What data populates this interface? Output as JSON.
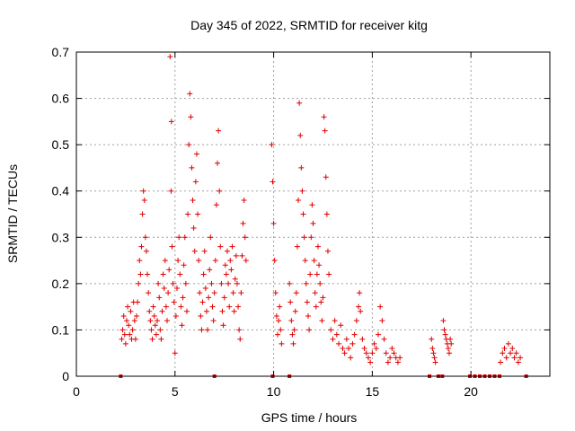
{
  "chart_data": {
    "type": "scatter",
    "title": "Day 345 of 2022, SRMTID for receiver kitg",
    "xlabel": "GPS time / hours",
    "ylabel": "SRMTID / TECUs",
    "xlim": [
      0,
      24
    ],
    "ylim": [
      0,
      0.7
    ],
    "xticks": [
      0,
      5,
      10,
      15,
      20
    ],
    "yticks": [
      0,
      0.1,
      0.2,
      0.3,
      0.4,
      0.5,
      0.6,
      0.7
    ],
    "grid": true,
    "marker": "plus",
    "color": "#e00000",
    "series": [
      {
        "name": "SRMTID",
        "points": [
          [
            2.3,
            0.08
          ],
          [
            2.35,
            0.1
          ],
          [
            2.4,
            0.13
          ],
          [
            2.45,
            0.09
          ],
          [
            2.5,
            0.07
          ],
          [
            2.55,
            0.12
          ],
          [
            2.6,
            0.15
          ],
          [
            2.65,
            0.11
          ],
          [
            2.7,
            0.09
          ],
          [
            2.75,
            0.14
          ],
          [
            2.8,
            0.08
          ],
          [
            2.85,
            0.1
          ],
          [
            2.9,
            0.16
          ],
          [
            2.95,
            0.12
          ],
          [
            3.0,
            0.08
          ],
          [
            3.05,
            0.13
          ],
          [
            3.1,
            0.16
          ],
          [
            3.15,
            0.2
          ],
          [
            3.2,
            0.25
          ],
          [
            3.25,
            0.22
          ],
          [
            3.3,
            0.28
          ],
          [
            3.35,
            0.35
          ],
          [
            3.4,
            0.4
          ],
          [
            3.45,
            0.38
          ],
          [
            3.5,
            0.3
          ],
          [
            3.55,
            0.27
          ],
          [
            3.6,
            0.22
          ],
          [
            3.65,
            0.18
          ],
          [
            3.7,
            0.14
          ],
          [
            3.75,
            0.12
          ],
          [
            3.8,
            0.1
          ],
          [
            3.85,
            0.08
          ],
          [
            3.9,
            0.15
          ],
          [
            3.95,
            0.13
          ],
          [
            4.0,
            0.11
          ],
          [
            4.05,
            0.09
          ],
          [
            4.1,
            0.12
          ],
          [
            4.15,
            0.2
          ],
          [
            4.2,
            0.17
          ],
          [
            4.25,
            0.1
          ],
          [
            4.3,
            0.08
          ],
          [
            4.35,
            0.14
          ],
          [
            4.4,
            0.22
          ],
          [
            4.45,
            0.19
          ],
          [
            4.5,
            0.25
          ],
          [
            4.55,
            0.15
          ],
          [
            4.6,
            0.12
          ],
          [
            4.65,
            0.18
          ],
          [
            4.7,
            0.23
          ],
          [
            4.75,
            0.69
          ],
          [
            4.8,
            0.4
          ],
          [
            4.82,
            0.55
          ],
          [
            4.85,
            0.28
          ],
          [
            4.9,
            0.2
          ],
          [
            4.95,
            0.16
          ],
          [
            5.0,
            0.05
          ],
          [
            5.05,
            0.13
          ],
          [
            5.1,
            0.19
          ],
          [
            5.15,
            0.25
          ],
          [
            5.2,
            0.3
          ],
          [
            5.25,
            0.22
          ],
          [
            5.3,
            0.15
          ],
          [
            5.35,
            0.11
          ],
          [
            5.4,
            0.17
          ],
          [
            5.45,
            0.24
          ],
          [
            5.5,
            0.3
          ],
          [
            5.55,
            0.2
          ],
          [
            5.6,
            0.14
          ],
          [
            5.65,
            0.35
          ],
          [
            5.7,
            0.5
          ],
          [
            5.75,
            0.61
          ],
          [
            5.8,
            0.56
          ],
          [
            5.85,
            0.45
          ],
          [
            5.9,
            0.38
          ],
          [
            5.95,
            0.32
          ],
          [
            6.0,
            0.27
          ],
          [
            6.05,
            0.42
          ],
          [
            6.1,
            0.48
          ],
          [
            6.15,
            0.35
          ],
          [
            6.2,
            0.25
          ],
          [
            6.25,
            0.18
          ],
          [
            6.3,
            0.13
          ],
          [
            6.35,
            0.1
          ],
          [
            6.4,
            0.16
          ],
          [
            6.45,
            0.22
          ],
          [
            6.5,
            0.27
          ],
          [
            6.55,
            0.19
          ],
          [
            6.6,
            0.14
          ],
          [
            6.65,
            0.1
          ],
          [
            6.7,
            0.17
          ],
          [
            6.75,
            0.23
          ],
          [
            6.8,
            0.3
          ],
          [
            6.85,
            0.2
          ],
          [
            6.9,
            0.15
          ],
          [
            6.95,
            0.12
          ],
          [
            7.0,
            0.18
          ],
          [
            7.05,
            0.25
          ],
          [
            7.1,
            0.37
          ],
          [
            7.15,
            0.46
          ],
          [
            7.2,
            0.53
          ],
          [
            7.25,
            0.4
          ],
          [
            7.3,
            0.28
          ],
          [
            7.35,
            0.2
          ],
          [
            7.4,
            0.14
          ],
          [
            7.45,
            0.11
          ],
          [
            7.5,
            0.17
          ],
          [
            7.55,
            0.24
          ],
          [
            7.6,
            0.22
          ],
          [
            7.65,
            0.27
          ],
          [
            7.7,
            0.2
          ],
          [
            7.75,
            0.15
          ],
          [
            7.8,
            0.25
          ],
          [
            7.85,
            0.23
          ],
          [
            7.9,
            0.28
          ],
          [
            7.95,
            0.18
          ],
          [
            8.0,
            0.14
          ],
          [
            8.05,
            0.21
          ],
          [
            8.1,
            0.26
          ],
          [
            8.15,
            0.2
          ],
          [
            8.2,
            0.15
          ],
          [
            8.25,
            0.1
          ],
          [
            8.3,
            0.08
          ],
          [
            8.35,
            0.18
          ],
          [
            8.4,
            0.26
          ],
          [
            8.45,
            0.33
          ],
          [
            8.5,
            0.38
          ],
          [
            8.55,
            0.3
          ],
          [
            8.6,
            0.25
          ],
          [
            9.9,
            0.5
          ],
          [
            9.95,
            0.42
          ],
          [
            10.0,
            0.33
          ],
          [
            10.05,
            0.25
          ],
          [
            10.1,
            0.18
          ],
          [
            10.15,
            0.13
          ],
          [
            10.2,
            0.09
          ],
          [
            10.25,
            0.12
          ],
          [
            10.3,
            0.15
          ],
          [
            10.35,
            0.1
          ],
          [
            10.4,
            0.07
          ],
          [
            10.8,
            0.2
          ],
          [
            10.85,
            0.16
          ],
          [
            10.9,
            0.12
          ],
          [
            10.95,
            0.09
          ],
          [
            11.0,
            0.07
          ],
          [
            11.05,
            0.1
          ],
          [
            11.1,
            0.14
          ],
          [
            11.15,
            0.18
          ],
          [
            11.2,
            0.28
          ],
          [
            11.25,
            0.38
          ],
          [
            11.3,
            0.59
          ],
          [
            11.35,
            0.52
          ],
          [
            11.4,
            0.45
          ],
          [
            11.45,
            0.4
          ],
          [
            11.5,
            0.35
          ],
          [
            11.55,
            0.3
          ],
          [
            11.6,
            0.25
          ],
          [
            11.65,
            0.2
          ],
          [
            11.7,
            0.16
          ],
          [
            11.75,
            0.13
          ],
          [
            11.8,
            0.1
          ],
          [
            11.85,
            0.22
          ],
          [
            11.9,
            0.3
          ],
          [
            11.95,
            0.37
          ],
          [
            12.0,
            0.33
          ],
          [
            12.05,
            0.25
          ],
          [
            12.1,
            0.18
          ],
          [
            12.15,
            0.15
          ],
          [
            12.2,
            0.22
          ],
          [
            12.25,
            0.28
          ],
          [
            12.3,
            0.24
          ],
          [
            12.35,
            0.2
          ],
          [
            12.4,
            0.16
          ],
          [
            12.45,
            0.12
          ],
          [
            12.5,
            0.17
          ],
          [
            12.55,
            0.56
          ],
          [
            12.6,
            0.53
          ],
          [
            12.65,
            0.43
          ],
          [
            12.7,
            0.35
          ],
          [
            12.75,
            0.27
          ],
          [
            12.8,
            0.22
          ],
          [
            12.9,
            0.1
          ],
          [
            13.0,
            0.08
          ],
          [
            13.1,
            0.12
          ],
          [
            13.2,
            0.09
          ],
          [
            13.3,
            0.07
          ],
          [
            13.4,
            0.11
          ],
          [
            13.5,
            0.06
          ],
          [
            13.6,
            0.05
          ],
          [
            13.7,
            0.08
          ],
          [
            13.8,
            0.06
          ],
          [
            13.9,
            0.04
          ],
          [
            14.0,
            0.07
          ],
          [
            14.1,
            0.09
          ],
          [
            14.2,
            0.12
          ],
          [
            14.3,
            0.15
          ],
          [
            14.35,
            0.18
          ],
          [
            14.4,
            0.14
          ],
          [
            14.5,
            0.08
          ],
          [
            14.6,
            0.06
          ],
          [
            14.7,
            0.05
          ],
          [
            14.8,
            0.04
          ],
          [
            14.9,
            0.03
          ],
          [
            15.0,
            0.05
          ],
          [
            15.1,
            0.07
          ],
          [
            15.2,
            0.06
          ],
          [
            15.3,
            0.09
          ],
          [
            15.4,
            0.15
          ],
          [
            15.5,
            0.12
          ],
          [
            15.6,
            0.08
          ],
          [
            15.7,
            0.05
          ],
          [
            15.8,
            0.03
          ],
          [
            15.9,
            0.04
          ],
          [
            16.0,
            0.06
          ],
          [
            16.1,
            0.05
          ],
          [
            16.2,
            0.04
          ],
          [
            16.3,
            0.03
          ],
          [
            16.4,
            0.04
          ],
          [
            18.0,
            0.08
          ],
          [
            18.05,
            0.06
          ],
          [
            18.1,
            0.05
          ],
          [
            18.15,
            0.04
          ],
          [
            18.2,
            0.03
          ],
          [
            18.6,
            0.12
          ],
          [
            18.65,
            0.1
          ],
          [
            18.7,
            0.09
          ],
          [
            18.75,
            0.08
          ],
          [
            18.8,
            0.07
          ],
          [
            18.85,
            0.06
          ],
          [
            18.9,
            0.05
          ],
          [
            18.95,
            0.08
          ],
          [
            19.0,
            0.07
          ],
          [
            21.5,
            0.03
          ],
          [
            21.6,
            0.05
          ],
          [
            21.7,
            0.06
          ],
          [
            21.8,
            0.04
          ],
          [
            21.9,
            0.07
          ],
          [
            22.0,
            0.05
          ],
          [
            22.1,
            0.06
          ],
          [
            22.2,
            0.04
          ],
          [
            22.3,
            0.05
          ],
          [
            22.4,
            0.03
          ],
          [
            22.5,
            0.04
          ]
        ],
        "zero_markers": [
          2.25,
          7.0,
          9.95,
          10.8,
          17.9,
          18.35,
          18.55,
          19.95,
          20.2,
          20.45,
          20.7,
          20.95,
          21.2,
          21.45,
          22.8
        ]
      }
    ]
  }
}
